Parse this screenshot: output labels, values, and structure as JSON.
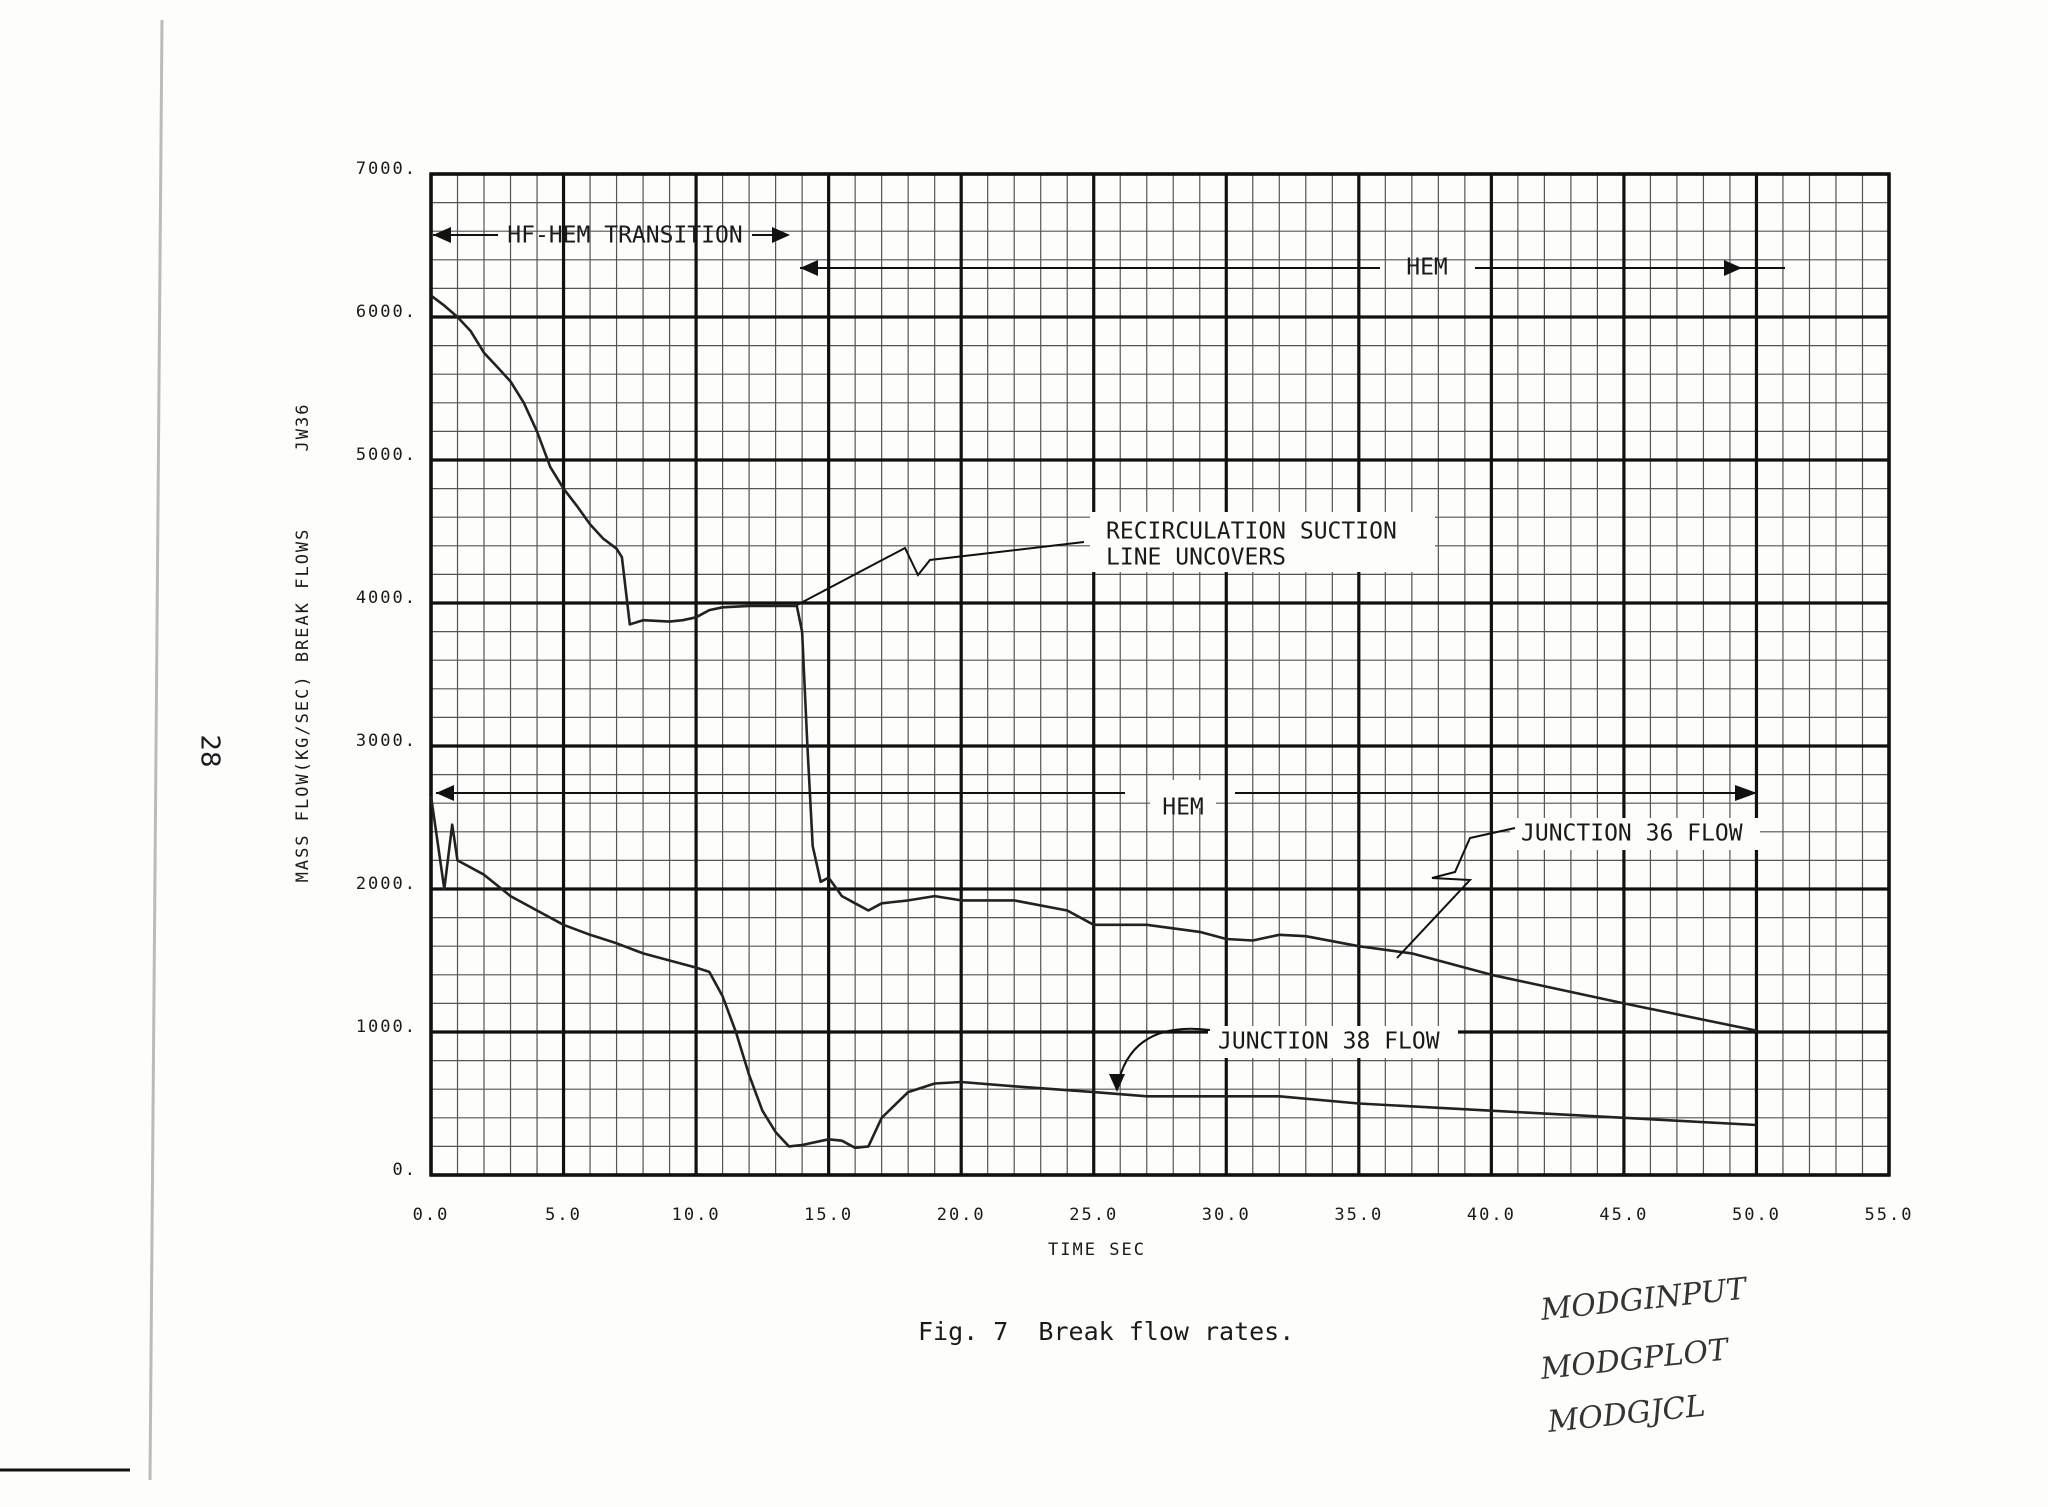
{
  "chart_data": {
    "type": "line",
    "xlabel": "TIME  SEC",
    "ylabel": "MASS FLOW(KG/SEC) BREAK FLOWS",
    "plot_id": "JW36",
    "page_number": "28",
    "caption": "Fig. 7  Break flow rates.",
    "grid": true,
    "xlim": [
      0,
      55
    ],
    "ylim": [
      0,
      7000
    ],
    "xticks": [
      {
        "value": 0,
        "label": "0.0"
      },
      {
        "value": 5,
        "label": "5.0"
      },
      {
        "value": 10,
        "label": "10.0"
      },
      {
        "value": 15,
        "label": "15.0"
      },
      {
        "value": 20,
        "label": "20.0"
      },
      {
        "value": 25,
        "label": "25.0"
      },
      {
        "value": 30,
        "label": "30.0"
      },
      {
        "value": 35,
        "label": "35.0"
      },
      {
        "value": 40,
        "label": "40.0"
      },
      {
        "value": 45,
        "label": "45.0"
      },
      {
        "value": 50,
        "label": "50.0"
      },
      {
        "value": 55,
        "label": "55.0"
      }
    ],
    "yticks": [
      {
        "value": 0,
        "label": "0."
      },
      {
        "value": 1000,
        "label": "1000."
      },
      {
        "value": 2000,
        "label": "2000."
      },
      {
        "value": 3000,
        "label": "3000."
      },
      {
        "value": 4000,
        "label": "4000."
      },
      {
        "value": 5000,
        "label": "5000."
      },
      {
        "value": 6000,
        "label": "6000."
      },
      {
        "value": 7000,
        "label": "7000."
      }
    ],
    "series": [
      {
        "name": "JUNCTION 36 FLOW",
        "color": "#222222",
        "x": [
          0,
          0.5,
          1,
          1.5,
          2,
          2.5,
          3,
          3.5,
          4,
          4.5,
          5,
          5.5,
          6,
          6.5,
          7,
          7.2,
          7.5,
          8,
          9,
          9.5,
          10,
          10.5,
          11,
          12,
          13,
          13.8,
          14,
          14.2,
          14.4,
          14.7,
          15,
          15.5,
          16,
          16.5,
          17,
          18,
          19,
          20,
          22,
          24,
          25,
          27,
          29,
          30,
          31,
          32,
          33,
          35,
          37,
          40,
          45,
          50
        ],
        "values": [
          6150,
          6080,
          6000,
          5900,
          5750,
          5650,
          5550,
          5400,
          5200,
          4950,
          4800,
          4680,
          4550,
          4450,
          4380,
          4320,
          3850,
          3880,
          3870,
          3880,
          3900,
          3950,
          3970,
          3980,
          3980,
          3980,
          3800,
          3000,
          2300,
          2050,
          2080,
          1950,
          1900,
          1850,
          1900,
          1920,
          1950,
          1920,
          1920,
          1850,
          1750,
          1750,
          1700,
          1650,
          1640,
          1680,
          1670,
          1600,
          1550,
          1400,
          1200,
          1010
        ]
      },
      {
        "name": "JUNCTION 38 FLOW",
        "color": "#222222",
        "x": [
          0,
          0.5,
          0.8,
          1,
          2,
          3,
          4,
          5,
          6,
          7,
          8,
          9,
          10,
          10.5,
          11,
          11.5,
          12,
          12.5,
          13,
          13.5,
          14,
          15,
          15.5,
          16,
          16.5,
          17,
          18,
          19,
          20,
          22,
          25,
          27,
          30,
          32,
          35,
          40,
          45,
          50
        ],
        "values": [
          2650,
          2000,
          2450,
          2200,
          2100,
          1950,
          1850,
          1750,
          1680,
          1620,
          1550,
          1500,
          1450,
          1420,
          1250,
          1000,
          700,
          450,
          300,
          200,
          210,
          250,
          240,
          190,
          200,
          400,
          580,
          640,
          650,
          620,
          580,
          550,
          550,
          550,
          500,
          450,
          400,
          350
        ]
      }
    ],
    "annotations": {
      "transition": "HF-HEM TRANSITION",
      "hem_upper": "HEM",
      "recirc_line1": "RECIRCULATION SUCTION",
      "recirc_line2": "LINE UNCOVERS",
      "hem_lower": "HEM"
    },
    "handwritten": [
      "MODGINPUT",
      "MODGPLOT",
      "MODGJCL"
    ]
  }
}
